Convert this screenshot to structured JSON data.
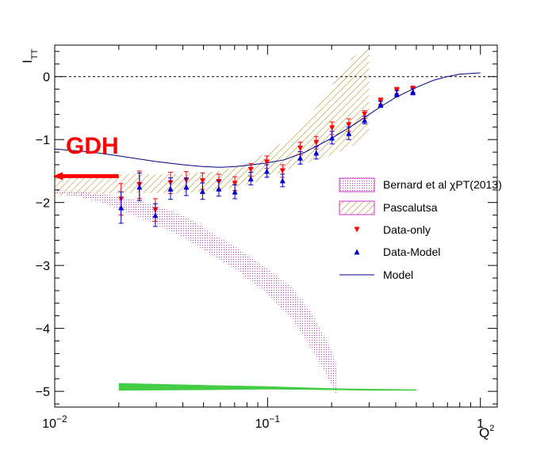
{
  "chart_data": {
    "type": "scatter",
    "xlabel": "Q",
    "xlabel_sup": "2",
    "ylabel": "I",
    "ylabel_sub": "TT",
    "xscale": "log",
    "xlim": [
      0.01,
      1.2
    ],
    "ylim": [
      -5.25,
      0.5
    ],
    "x_tick_labels": [
      {
        "value": 0.01,
        "base": "10",
        "exp": "−2"
      },
      {
        "value": 0.1,
        "base": "10",
        "exp": "−1"
      },
      {
        "value": 1,
        "base": "1",
        "exp": ""
      }
    ],
    "y_ticks": [
      0,
      -1,
      -2,
      -3,
      -4,
      -5
    ],
    "y_tick_labels": [
      "0",
      "−1",
      "−2",
      "−3",
      "−4",
      "−5"
    ],
    "zero_line": {
      "y": 0,
      "style": "dashed"
    },
    "annotation": {
      "text": "GDH",
      "color": "#ff0000",
      "arrow_from_x": 0.02,
      "arrow_to_x": 0.01,
      "y": -1.58
    },
    "colors": {
      "data_only": "#ff0000",
      "data_model": "#0000cc",
      "model": "#000080",
      "bernard": "#cc33cc",
      "pascalutsa": "#a08000",
      "green_band": "#44cc44",
      "gdh": "#ff0000"
    },
    "legend": {
      "placement": "center-right",
      "entries": [
        {
          "label": "Bernard et al  χPT(2013)",
          "kind": "band-dots"
        },
        {
          "label": "Pascalutsa",
          "kind": "band-hatch"
        },
        {
          "label": "Data-only",
          "kind": "marker-down"
        },
        {
          "label": "Data-Model",
          "kind": "marker-up"
        },
        {
          "label": "Model",
          "kind": "line"
        }
      ]
    },
    "series": [
      {
        "name": "Data-only",
        "marker": "triangle-down",
        "points": [
          {
            "x": 0.0205,
            "y": -1.95,
            "err": 0.25
          },
          {
            "x": 0.025,
            "y": -1.72,
            "err": 0.22
          },
          {
            "x": 0.0297,
            "y": -2.12,
            "err": 0.18
          },
          {
            "x": 0.035,
            "y": -1.69,
            "err": 0.17
          },
          {
            "x": 0.0415,
            "y": -1.65,
            "err": 0.14
          },
          {
            "x": 0.0495,
            "y": -1.66,
            "err": 0.13
          },
          {
            "x": 0.059,
            "y": -1.67,
            "err": 0.12
          },
          {
            "x": 0.0702,
            "y": -1.7,
            "err": 0.11
          },
          {
            "x": 0.0834,
            "y": -1.48,
            "err": 0.1
          },
          {
            "x": 0.0992,
            "y": -1.36,
            "err": 0.1
          },
          {
            "x": 0.1176,
            "y": -1.5,
            "err": 0.1
          },
          {
            "x": 0.1424,
            "y": -1.14,
            "err": 0.1
          },
          {
            "x": 0.1693,
            "y": -1.05,
            "err": 0.1
          },
          {
            "x": 0.2008,
            "y": -0.82,
            "err": 0.1
          },
          {
            "x": 0.2408,
            "y": -0.77,
            "err": 0.1
          },
          {
            "x": 0.2855,
            "y": -0.6,
            "err": 0.06
          },
          {
            "x": 0.3398,
            "y": -0.39,
            "err": 0.05
          },
          {
            "x": 0.4045,
            "y": -0.22,
            "err": 0.05
          },
          {
            "x": 0.4817,
            "y": -0.2,
            "err": 0.05
          }
        ]
      },
      {
        "name": "Data-Model",
        "marker": "triangle-up",
        "points": [
          {
            "x": 0.0205,
            "y": -2.08,
            "err": 0.25
          },
          {
            "x": 0.025,
            "y": -1.75,
            "err": 0.22
          },
          {
            "x": 0.0297,
            "y": -2.2,
            "err": 0.18
          },
          {
            "x": 0.035,
            "y": -1.78,
            "err": 0.17
          },
          {
            "x": 0.0415,
            "y": -1.75,
            "err": 0.14
          },
          {
            "x": 0.0495,
            "y": -1.82,
            "err": 0.13
          },
          {
            "x": 0.059,
            "y": -1.78,
            "err": 0.12
          },
          {
            "x": 0.0702,
            "y": -1.83,
            "err": 0.11
          },
          {
            "x": 0.0834,
            "y": -1.62,
            "err": 0.1
          },
          {
            "x": 0.0992,
            "y": -1.5,
            "err": 0.1
          },
          {
            "x": 0.1176,
            "y": -1.65,
            "err": 0.1
          },
          {
            "x": 0.1424,
            "y": -1.29,
            "err": 0.1
          },
          {
            "x": 0.1693,
            "y": -1.21,
            "err": 0.1
          },
          {
            "x": 0.2008,
            "y": -0.97,
            "err": 0.1
          },
          {
            "x": 0.2408,
            "y": -0.9,
            "err": 0.1
          },
          {
            "x": 0.2855,
            "y": -0.69,
            "err": 0.06
          },
          {
            "x": 0.3398,
            "y": -0.44,
            "err": 0.05
          },
          {
            "x": 0.4045,
            "y": -0.27,
            "err": 0.05
          },
          {
            "x": 0.4817,
            "y": -0.24,
            "err": 0.05
          }
        ]
      },
      {
        "name": "Model",
        "marker": "line",
        "points": [
          {
            "x": 0.01,
            "y": -1.15
          },
          {
            "x": 0.015,
            "y": -1.2
          },
          {
            "x": 0.02,
            "y": -1.26
          },
          {
            "x": 0.03,
            "y": -1.35
          },
          {
            "x": 0.04,
            "y": -1.4
          },
          {
            "x": 0.05,
            "y": -1.43
          },
          {
            "x": 0.06,
            "y": -1.44
          },
          {
            "x": 0.07,
            "y": -1.43
          },
          {
            "x": 0.08,
            "y": -1.41
          },
          {
            "x": 0.1,
            "y": -1.37
          },
          {
            "x": 0.12,
            "y": -1.32
          },
          {
            "x": 0.15,
            "y": -1.2
          },
          {
            "x": 0.2,
            "y": -0.98
          },
          {
            "x": 0.25,
            "y": -0.78
          },
          {
            "x": 0.3,
            "y": -0.6
          },
          {
            "x": 0.35,
            "y": -0.45
          },
          {
            "x": 0.4,
            "y": -0.33
          },
          {
            "x": 0.5,
            "y": -0.17
          },
          {
            "x": 0.6,
            "y": -0.06
          },
          {
            "x": 0.7,
            "y": 0.0
          },
          {
            "x": 0.8,
            "y": 0.04
          },
          {
            "x": 1.0,
            "y": 0.06
          }
        ]
      },
      {
        "name": "Bernard et al  χPT(2013)",
        "marker": "band",
        "points": [
          {
            "x": 0.01,
            "lo": -1.85,
            "hi": -1.8
          },
          {
            "x": 0.015,
            "lo": -1.95,
            "hi": -1.85
          },
          {
            "x": 0.02,
            "lo": -2.1,
            "hi": -1.9
          },
          {
            "x": 0.03,
            "lo": -2.35,
            "hi": -2.05
          },
          {
            "x": 0.04,
            "lo": -2.55,
            "hi": -2.2
          },
          {
            "x": 0.05,
            "lo": -2.75,
            "hi": -2.4
          },
          {
            "x": 0.07,
            "lo": -3.05,
            "hi": -2.7
          },
          {
            "x": 0.1,
            "lo": -3.45,
            "hi": -3.05
          },
          {
            "x": 0.13,
            "lo": -3.85,
            "hi": -3.35
          },
          {
            "x": 0.16,
            "lo": -4.3,
            "hi": -3.75
          },
          {
            "x": 0.19,
            "lo": -4.75,
            "hi": -4.2
          },
          {
            "x": 0.21,
            "lo": -5.05,
            "hi": -4.55
          }
        ]
      },
      {
        "name": "Pascalutsa",
        "marker": "band",
        "points": [
          {
            "x": 0.01,
            "lo": -1.9,
            "hi": -1.6
          },
          {
            "x": 0.02,
            "lo": -1.85,
            "hi": -1.55
          },
          {
            "x": 0.04,
            "lo": -1.85,
            "hi": -1.55
          },
          {
            "x": 0.06,
            "lo": -1.8,
            "hi": -1.5
          },
          {
            "x": 0.08,
            "lo": -1.72,
            "hi": -1.38
          },
          {
            "x": 0.1,
            "lo": -1.6,
            "hi": -1.2
          },
          {
            "x": 0.13,
            "lo": -1.45,
            "hi": -0.95
          },
          {
            "x": 0.16,
            "lo": -1.35,
            "hi": -0.6
          },
          {
            "x": 0.2,
            "lo": -1.25,
            "hi": -0.15
          },
          {
            "x": 0.25,
            "lo": -1.1,
            "hi": 0.3
          },
          {
            "x": 0.3,
            "lo": -0.9,
            "hi": 0.5
          }
        ]
      },
      {
        "name": "",
        "marker": "band",
        "points": [
          {
            "x": 0.02,
            "lo": -4.99,
            "hi": -4.87
          },
          {
            "x": 0.05,
            "lo": -4.98,
            "hi": -4.9
          },
          {
            "x": 0.1,
            "lo": -4.97,
            "hi": -4.92
          },
          {
            "x": 0.2,
            "lo": -4.98,
            "hi": -4.95
          },
          {
            "x": 0.3,
            "lo": -4.99,
            "hi": -4.96
          },
          {
            "x": 0.5,
            "lo": -4.99,
            "hi": -4.97
          }
        ]
      }
    ]
  }
}
